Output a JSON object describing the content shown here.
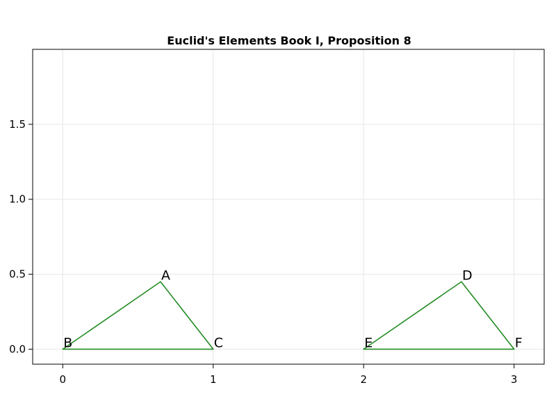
{
  "chart_data": {
    "type": "line",
    "title": "Euclid's Elements Book I, Proposition 8",
    "xlabel": "",
    "ylabel": "",
    "xlim": [
      -0.2,
      3.2
    ],
    "ylim": [
      -0.1,
      2.0
    ],
    "grid": true,
    "xticks": [
      {
        "value": 0,
        "label": "0"
      },
      {
        "value": 1,
        "label": "1"
      },
      {
        "value": 2,
        "label": "2"
      },
      {
        "value": 3,
        "label": "3"
      }
    ],
    "yticks": [
      {
        "value": 0.0,
        "label": "0.0"
      },
      {
        "value": 0.5,
        "label": "0.5"
      },
      {
        "value": 1.0,
        "label": "1.0"
      },
      {
        "value": 1.5,
        "label": "1.5"
      }
    ],
    "line_color": "#228b22",
    "triangles": [
      {
        "vertices": [
          {
            "label": "A",
            "x": 0.65,
            "y": 0.45
          },
          {
            "label": "B",
            "x": 0.0,
            "y": 0.0
          },
          {
            "label": "C",
            "x": 1.0,
            "y": 0.0
          }
        ]
      },
      {
        "vertices": [
          {
            "label": "D",
            "x": 2.65,
            "y": 0.45
          },
          {
            "label": "E",
            "x": 2.0,
            "y": 0.0
          },
          {
            "label": "F",
            "x": 3.0,
            "y": 0.0
          }
        ]
      }
    ]
  }
}
